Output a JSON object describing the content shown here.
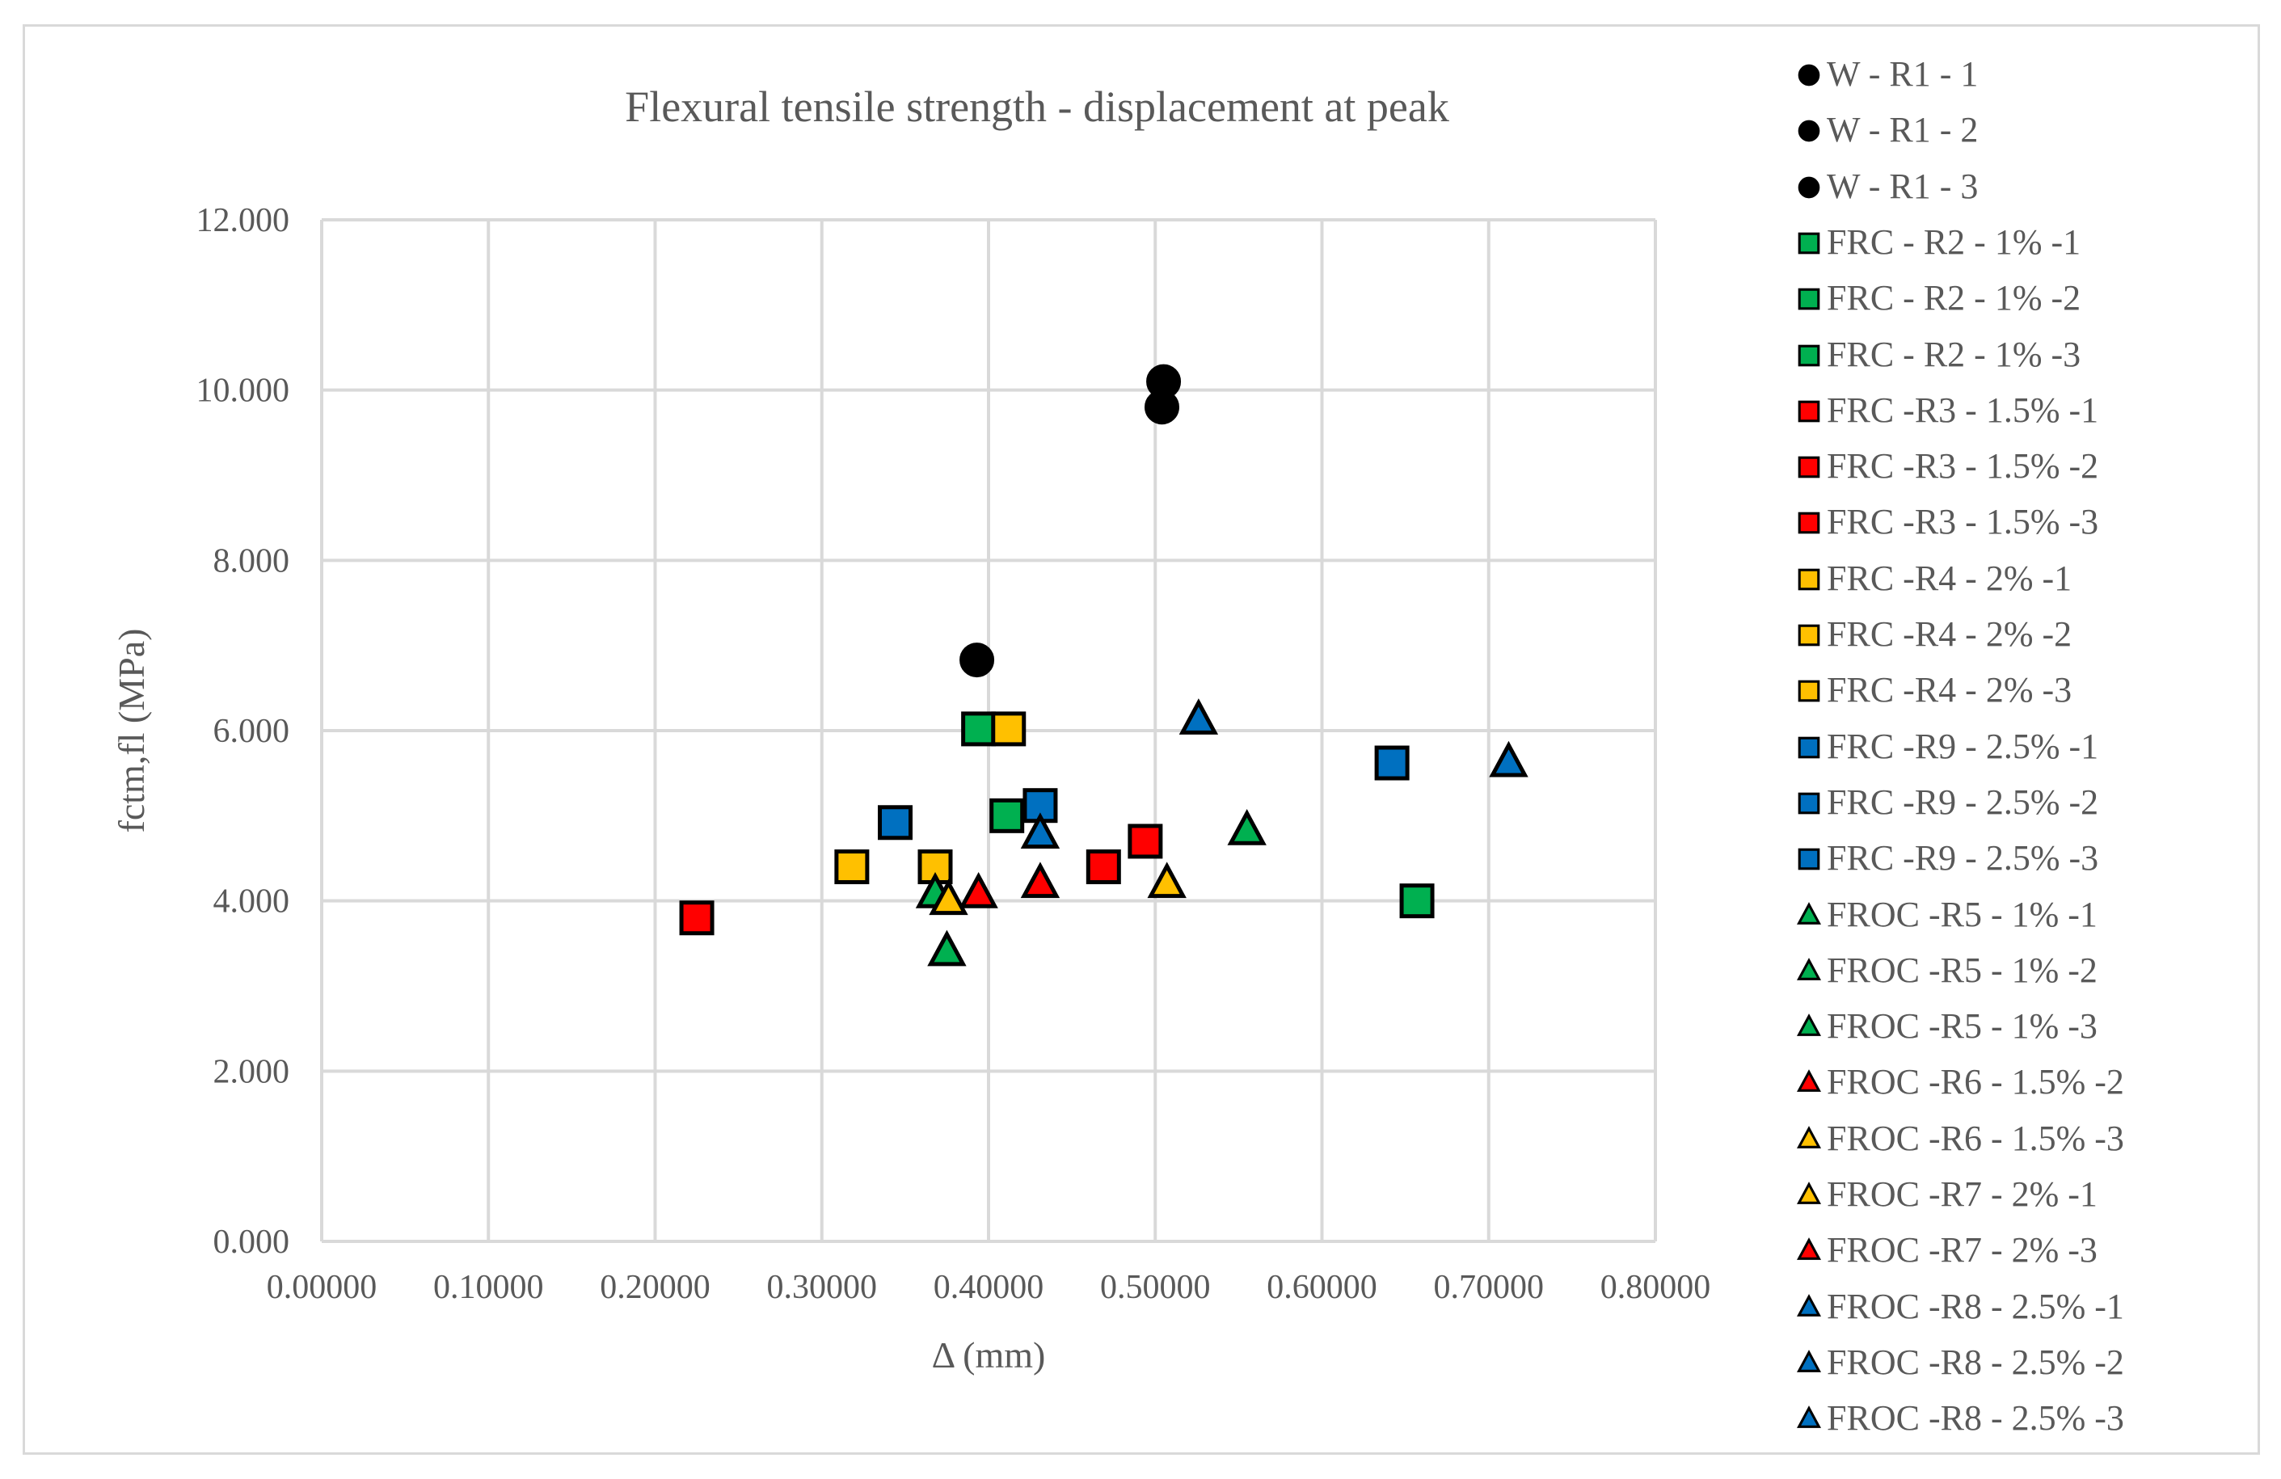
{
  "colors": {
    "black": "#000000",
    "green": "#00b050",
    "red": "#ff0000",
    "yellow": "#ffc000",
    "blue": "#0070c0",
    "grid": "#d9d9d9",
    "text": "#595959"
  },
  "chart_data": {
    "type": "scatter",
    "title": "Flexural tensile strength - displacement at peak",
    "xlabel": "Δ (mm)",
    "ylabel": "fctm,fl (MPa)",
    "xlim": [
      0,
      0.8
    ],
    "ylim": [
      0,
      12
    ],
    "xticks": [
      0,
      0.1,
      0.2,
      0.3,
      0.4,
      0.5,
      0.6,
      0.7,
      0.8
    ],
    "xtick_labels": [
      "0.00000",
      "0.10000",
      "0.20000",
      "0.30000",
      "0.40000",
      "0.50000",
      "0.60000",
      "0.70000",
      "0.80000"
    ],
    "yticks": [
      0,
      2,
      4,
      6,
      8,
      10,
      12
    ],
    "ytick_labels": [
      "0.000",
      "2.000",
      "4.000",
      "6.000",
      "8.000",
      "10.000",
      "12.000"
    ],
    "grid": true,
    "legend_position": "right",
    "series": [
      {
        "name": "W - R1 - 1",
        "marker": "circle",
        "color": "black",
        "points": [
          [
            0.505,
            10.1
          ]
        ]
      },
      {
        "name": "W - R1 - 2",
        "marker": "circle",
        "color": "black",
        "points": [
          [
            0.504,
            9.8
          ]
        ]
      },
      {
        "name": "W - R1 - 3",
        "marker": "circle",
        "color": "black",
        "points": [
          [
            0.393,
            6.83
          ]
        ]
      },
      {
        "name": "FRC - R2 - 1% -1",
        "marker": "square",
        "color": "green",
        "points": [
          [
            0.394,
            6.02
          ]
        ]
      },
      {
        "name": "FRC - R2 - 1% -2",
        "marker": "square",
        "color": "green",
        "points": [
          [
            0.411,
            5.0
          ]
        ]
      },
      {
        "name": "FRC - R2 - 1% -3",
        "marker": "square",
        "color": "green",
        "points": [
          [
            0.657,
            4.0
          ]
        ]
      },
      {
        "name": "FRC -R3 - 1.5% -1",
        "marker": "square",
        "color": "red",
        "points": [
          [
            0.225,
            3.8
          ]
        ]
      },
      {
        "name": "FRC -R3 - 1.5% -2",
        "marker": "square",
        "color": "red",
        "points": [
          [
            0.469,
            4.4
          ]
        ]
      },
      {
        "name": "FRC -R3 - 1.5% -3",
        "marker": "square",
        "color": "red",
        "points": [
          [
            0.494,
            4.7
          ]
        ]
      },
      {
        "name": "FRC -R4 - 2% -1",
        "marker": "square",
        "color": "yellow",
        "points": [
          [
            0.318,
            4.4
          ]
        ]
      },
      {
        "name": "FRC -R4 - 2% -2",
        "marker": "square",
        "color": "yellow",
        "points": [
          [
            0.368,
            4.4
          ]
        ]
      },
      {
        "name": "FRC -R4 - 2% -3",
        "marker": "square",
        "color": "yellow",
        "points": [
          [
            0.412,
            6.02
          ]
        ]
      },
      {
        "name": "FRC -R9 - 2.5% -1",
        "marker": "square",
        "color": "blue",
        "points": [
          [
            0.344,
            4.92
          ]
        ]
      },
      {
        "name": "FRC -R9 - 2.5% -2",
        "marker": "square",
        "color": "blue",
        "points": [
          [
            0.431,
            5.12
          ]
        ]
      },
      {
        "name": "FRC -R9 - 2.5% -3",
        "marker": "square",
        "color": "blue",
        "points": [
          [
            0.642,
            5.62
          ]
        ]
      },
      {
        "name": "FROC -R5 - 1% -1",
        "marker": "triangle",
        "color": "green",
        "points": [
          [
            0.368,
            4.08
          ]
        ]
      },
      {
        "name": "FROC -R5 - 1% -2",
        "marker": "triangle",
        "color": "green",
        "points": [
          [
            0.375,
            3.4
          ]
        ]
      },
      {
        "name": "FROC -R5 - 1% -3",
        "marker": "triangle",
        "color": "green",
        "points": [
          [
            0.555,
            4.82
          ]
        ]
      },
      {
        "name": "FROC -R6 - 1.5% -2",
        "marker": "triangle",
        "color": "red",
        "points": [
          [
            0.394,
            4.08
          ]
        ]
      },
      {
        "name": "FROC -R6 - 1.5% -3",
        "marker": "triangle",
        "color": "yellow",
        "points": [
          [
            0.376,
            4.0
          ]
        ]
      },
      {
        "name": "FROC -R7 - 2% -1",
        "marker": "triangle",
        "color": "yellow",
        "points": [
          [
            0.507,
            4.2
          ]
        ]
      },
      {
        "name": "FROC -R7 - 2% -3",
        "marker": "triangle",
        "color": "red",
        "points": [
          [
            0.431,
            4.2
          ]
        ]
      },
      {
        "name": "FROC -R8 - 2.5% -1",
        "marker": "triangle",
        "color": "blue",
        "points": [
          [
            0.526,
            6.12
          ]
        ]
      },
      {
        "name": "FROC -R8 - 2.5% -2",
        "marker": "triangle",
        "color": "blue",
        "points": [
          [
            0.431,
            4.78
          ]
        ]
      },
      {
        "name": "FROC -R8 - 2.5% -3",
        "marker": "triangle",
        "color": "blue",
        "points": [
          [
            0.712,
            5.62
          ]
        ]
      }
    ]
  }
}
